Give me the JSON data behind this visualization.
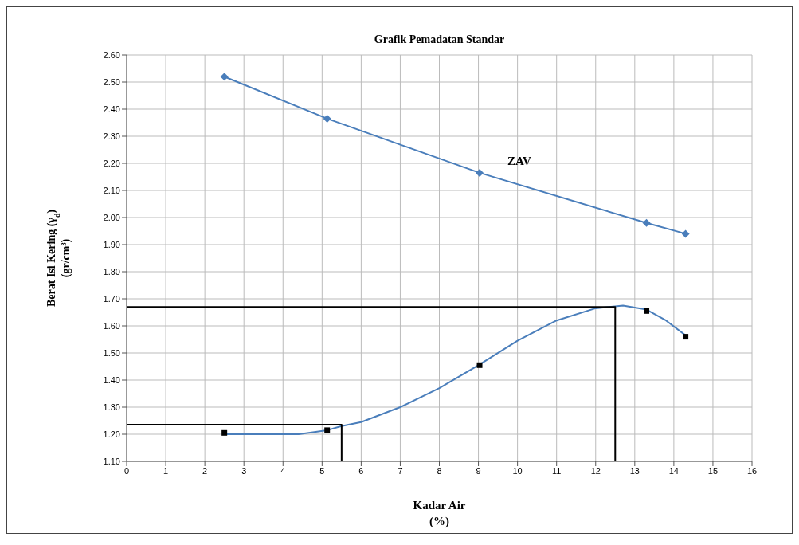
{
  "chart_data": {
    "type": "line",
    "title": "Grafik Pemadatan  Standar",
    "xlabel": "Kadar Air\n(%)",
    "ylabel": "Berat Isi Kering (γ$_{d}$)\n(gr/cm³)",
    "xlim": [
      0,
      16
    ],
    "xticks": [
      0,
      1,
      2,
      3,
      4,
      5,
      6,
      7,
      8,
      9,
      10,
      11,
      12,
      13,
      14,
      15,
      16
    ],
    "ylim": [
      1.1,
      2.6
    ],
    "yticks": [
      {
        "value": 1.1,
        "label": "1.10"
      },
      {
        "value": 1.2,
        "label": "1.20"
      },
      {
        "value": 1.3,
        "label": "1.30"
      },
      {
        "value": 1.4,
        "label": "1.40"
      },
      {
        "value": 1.5,
        "label": "1.50"
      },
      {
        "value": 1.6,
        "label": "1.60"
      },
      {
        "value": 1.7,
        "label": "1.70"
      },
      {
        "value": 1.8,
        "label": "1.80"
      },
      {
        "value": 1.9,
        "label": "1.90"
      },
      {
        "value": 2.0,
        "label": "2.00"
      },
      {
        "value": 2.1,
        "label": "2.10"
      },
      {
        "value": 2.2,
        "label": "2.20"
      },
      {
        "value": 2.3,
        "label": "2.30"
      },
      {
        "value": 2.4,
        "label": "2.40"
      },
      {
        "value": 2.5,
        "label": "2.50"
      },
      {
        "value": 2.6,
        "label": "2.60"
      }
    ],
    "grid": true,
    "series": [
      {
        "name": "ZAV",
        "color": "#4a7ebb",
        "marker": "diamond",
        "x": [
          2.5,
          5.13,
          9.03,
          13.3,
          14.3
        ],
        "values": [
          2.52,
          2.365,
          2.165,
          1.98,
          1.94
        ]
      },
      {
        "color": "#4a7ebb",
        "marker": "none",
        "x": [
          2.5,
          4.4,
          5.13,
          5.5,
          6,
          7,
          8,
          9,
          10,
          11,
          12,
          12.7,
          13.3,
          13.8,
          14.3
        ],
        "values": [
          1.2,
          1.2,
          1.215,
          1.23,
          1.245,
          1.3,
          1.37,
          1.455,
          1.545,
          1.62,
          1.665,
          1.675,
          1.66,
          1.62,
          1.565
        ]
      },
      {
        "color": "#000000",
        "marker": "none",
        "x": [
          0,
          12.5,
          12.5
        ],
        "values": [
          1.67,
          1.67,
          1.1
        ]
      },
      {
        "color": "#000000",
        "marker": "none",
        "x": [
          0,
          5.5,
          5.5
        ],
        "values": [
          1.235,
          1.235,
          1.1
        ]
      },
      {
        "type": "scatter",
        "color": "#000000",
        "marker": "square",
        "x": [
          2.5,
          5.13,
          9.03,
          13.3,
          14.3
        ],
        "values": [
          1.205,
          1.215,
          1.455,
          1.655,
          1.56
        ]
      }
    ]
  }
}
